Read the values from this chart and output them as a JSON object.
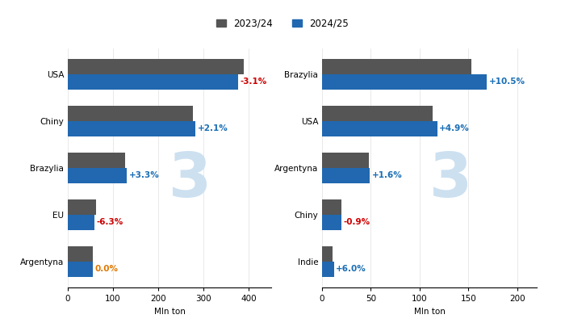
{
  "corn": {
    "categories": [
      "USA",
      "Chiny",
      "Brazylia",
      "EU",
      "Argentyna"
    ],
    "val_2023": [
      389,
      277,
      127,
      63,
      55
    ],
    "val_2024": [
      376,
      283,
      131,
      59,
      55
    ],
    "changes": [
      "-3.1%",
      "+2.1%",
      "+3.3%",
      "-6.3%",
      "0.0%"
    ],
    "change_colors": [
      "#cc0000",
      "#1a6eb5",
      "#1a6eb5",
      "#cc0000",
      "#e07800"
    ],
    "xlabel": "Mln ton",
    "xlim": [
      0,
      450
    ]
  },
  "soy": {
    "categories": [
      "Brazylia",
      "USA",
      "Argentyna",
      "Chiny",
      "Indie"
    ],
    "val_2023": [
      153,
      113,
      48,
      20,
      11
    ],
    "val_2024": [
      169,
      118,
      49,
      20,
      12
    ],
    "changes": [
      "+10.5%",
      "+4.9%",
      "+1.6%",
      "-0.9%",
      "+6.0%"
    ],
    "change_colors": [
      "#1a6eb5",
      "#1a6eb5",
      "#1a6eb5",
      "#cc0000",
      "#1a6eb5"
    ],
    "xlabel": "Mln ton",
    "xlim": [
      0,
      220
    ]
  },
  "legend_2023_color": "#555555",
  "legend_2024_color": "#2168b0",
  "bar_2023_color": "#555555",
  "bar_2024_color": "#2168b0",
  "bar_height": 0.32,
  "bg_color": "#ffffff",
  "watermark_color": "#cce0f0",
  "label_fontsize": 7.5,
  "tick_fontsize": 7.5,
  "legend_fontsize": 8.5
}
